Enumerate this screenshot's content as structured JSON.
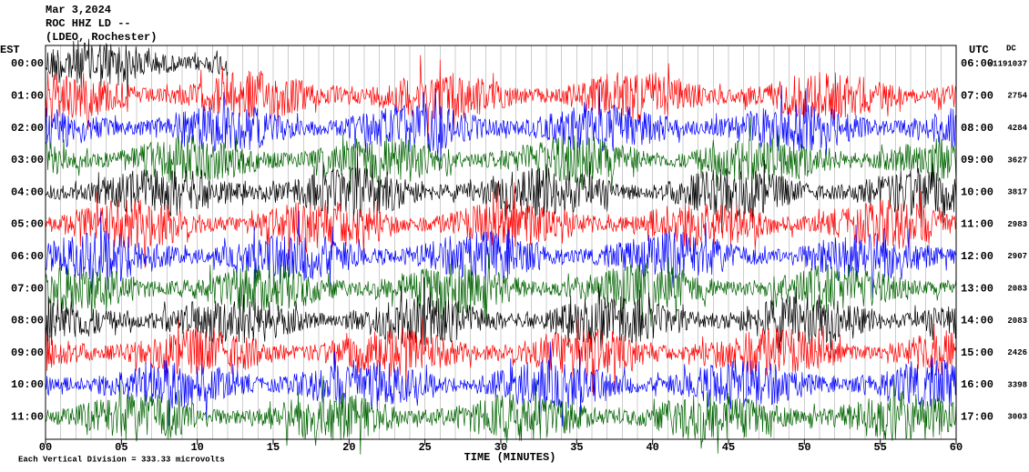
{
  "header": {
    "date": "Mar 3,2024",
    "station": "ROC HHZ LD --",
    "network": "(LDEO, Rochester)"
  },
  "left_axis_title": "EST",
  "right_axis_title": "UTC",
  "dc_title": "DC",
  "rows": [
    {
      "est": "00:00",
      "utc": "06:00",
      "dc": "-1191037",
      "color": "#000000"
    },
    {
      "est": "01:00",
      "utc": "07:00",
      "dc": "2754",
      "color": "#ff0000"
    },
    {
      "est": "02:00",
      "utc": "08:00",
      "dc": "4284",
      "color": "#0000ff"
    },
    {
      "est": "03:00",
      "utc": "09:00",
      "dc": "3627",
      "color": "#006400"
    },
    {
      "est": "04:00",
      "utc": "10:00",
      "dc": "3817",
      "color": "#000000"
    },
    {
      "est": "05:00",
      "utc": "11:00",
      "dc": "2983",
      "color": "#ff0000"
    },
    {
      "est": "06:00",
      "utc": "12:00",
      "dc": "2907",
      "color": "#0000ff"
    },
    {
      "est": "07:00",
      "utc": "13:00",
      "dc": "2083",
      "color": "#006400"
    },
    {
      "est": "08:00",
      "utc": "14:00",
      "dc": "2083",
      "color": "#000000"
    },
    {
      "est": "09:00",
      "utc": "15:00",
      "dc": "2426",
      "color": "#ff0000"
    },
    {
      "est": "10:00",
      "utc": "16:00",
      "dc": "3398",
      "color": "#0000ff"
    },
    {
      "est": "11:00",
      "utc": "17:00",
      "dc": "3003",
      "color": "#006400"
    }
  ],
  "x_axis": {
    "title": "TIME (MINUTES)",
    "xlim": [
      0,
      60
    ],
    "ticks": [
      {
        "value": 0,
        "label": "00"
      },
      {
        "value": 5,
        "label": "05"
      },
      10,
      15,
      20,
      25,
      30,
      35,
      40,
      45,
      50,
      55,
      60
    ]
  },
  "footer": "Each Vertical Division = 333.33 microvolts"
}
